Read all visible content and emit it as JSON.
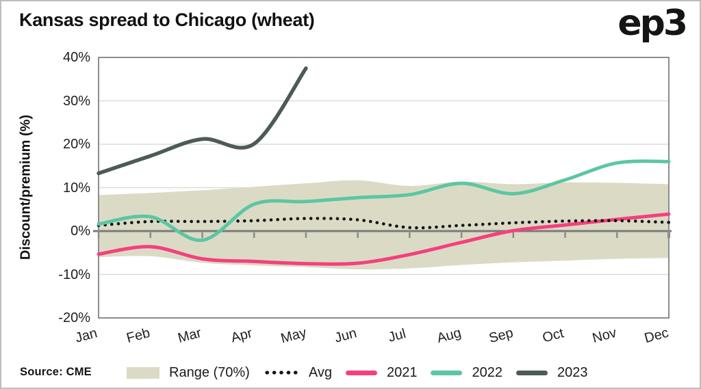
{
  "page": {
    "title": "Kansas spread to Chicago (wheat)",
    "logo": "ep3",
    "source": "Source: CME"
  },
  "chart_data": {
    "type": "line",
    "title": "Kansas spread to Chicago (wheat)",
    "xlabel": "",
    "ylabel": "Discount/premium (%)",
    "ylim": [
      -20,
      40
    ],
    "yticks": [
      40,
      30,
      20,
      10,
      0,
      -10,
      -20
    ],
    "ytick_labels": [
      "40%",
      "30%",
      "20%",
      "10%",
      "0%",
      "-10%",
      "-20%"
    ],
    "gridline_values": [
      30,
      20,
      10,
      -10
    ],
    "grid": "horizontal",
    "legend_position": "bottom",
    "categories": [
      "Jan",
      "Feb",
      "Mar",
      "Apr",
      "May",
      "Jun",
      "Jul",
      "Aug",
      "Sep",
      "Oct",
      "Nov",
      "Dec"
    ],
    "series": [
      {
        "name": "Range (70%)",
        "type": "band",
        "color": "#DBDBC5",
        "upper": [
          8.3,
          8.8,
          9.4,
          10.2,
          11.0,
          11.7,
          10.4,
          11.4,
          10.8,
          11.2,
          11.1,
          10.8
        ],
        "lower": [
          -6.0,
          -5.8,
          -7.3,
          -7.9,
          -8.3,
          -8.8,
          -8.6,
          -7.8,
          -7.2,
          -6.8,
          -6.4,
          -6.2
        ]
      },
      {
        "name": "Avg",
        "type": "dotted-line",
        "color": "#141414",
        "values": [
          1.3,
          2.2,
          2.2,
          2.4,
          2.9,
          2.6,
          0.8,
          1.3,
          1.9,
          2.3,
          2.4,
          2.0
        ]
      },
      {
        "name": "2021",
        "type": "line",
        "color": "#F4407E",
        "values": [
          -5.3,
          -3.6,
          -6.4,
          -7.0,
          -7.5,
          -7.4,
          -5.4,
          -2.6,
          0.1,
          1.4,
          2.7,
          3.9
        ]
      },
      {
        "name": "2022",
        "type": "line",
        "color": "#5CC6A2",
        "values": [
          1.6,
          3.3,
          -2.1,
          6.2,
          6.8,
          7.7,
          8.4,
          11.0,
          8.6,
          11.8,
          15.7,
          16.0
        ]
      },
      {
        "name": "2023",
        "type": "line",
        "color": "#4C5B55",
        "values": [
          13.3,
          17.3,
          21.2,
          20.1,
          37.5
        ],
        "note": "ends mid-May"
      }
    ],
    "axis_colors": {
      "gridline": "#DCDCDC",
      "frame": "#8C8C8C",
      "zero_line": "#7A7A7A",
      "tick": "#8A8A8A"
    }
  }
}
